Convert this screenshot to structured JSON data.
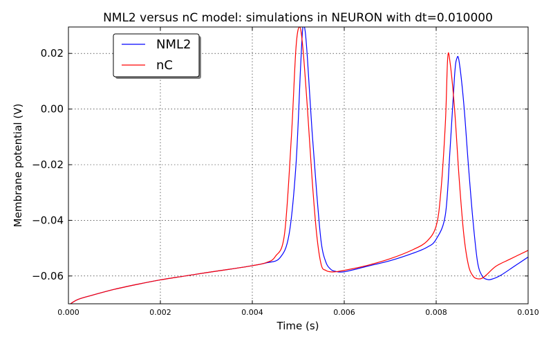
{
  "chart_data": {
    "type": "line",
    "title": "NML2 versus nC model: simulations in NEURON with dt=0.010000",
    "xlabel": "Time (s)",
    "ylabel": "Membrane potential (V)",
    "xlim": [
      0.0,
      0.01
    ],
    "ylim": [
      -0.07,
      0.0295
    ],
    "grid": true,
    "legend_position": "top-left",
    "x_ticks": [
      0.0,
      0.002,
      0.004,
      0.006,
      0.008,
      0.01
    ],
    "x_tick_labels": [
      "0.000",
      "0.002",
      "0.004",
      "0.006",
      "0.008",
      "0.010"
    ],
    "y_ticks": [
      -0.06,
      -0.04,
      -0.02,
      0.0,
      0.02
    ],
    "y_tick_labels": [
      "−0.06",
      "−0.04",
      "−0.02",
      "0.00",
      "0.02"
    ],
    "series": [
      {
        "name": "NML2",
        "color": "#0000ff",
        "x": [
          0.0,
          0.0002,
          0.0005,
          0.001,
          0.0015,
          0.002,
          0.0025,
          0.003,
          0.0035,
          0.004,
          0.0043,
          0.0046,
          0.0048,
          0.00495,
          0.00505,
          0.0051,
          0.00515,
          0.0052,
          0.0053,
          0.0054,
          0.0055,
          0.0056,
          0.0057,
          0.0058,
          0.006,
          0.0065,
          0.007,
          0.0075,
          0.0078,
          0.008,
          0.0082,
          0.0083,
          0.0084,
          0.00845,
          0.0085,
          0.0086,
          0.0087,
          0.0088,
          0.0089,
          0.009,
          0.0091,
          0.0092,
          0.0094,
          0.0097,
          0.01
        ],
        "y": [
          -0.0705,
          -0.0685,
          -0.067,
          -0.0648,
          -0.063,
          -0.0614,
          -0.0601,
          -0.0588,
          -0.0576,
          -0.0563,
          -0.0553,
          -0.0535,
          -0.045,
          -0.02,
          0.015,
          0.0295,
          0.028,
          0.018,
          -0.008,
          -0.03,
          -0.048,
          -0.055,
          -0.0575,
          -0.0583,
          -0.0585,
          -0.0565,
          -0.0545,
          -0.0518,
          -0.0497,
          -0.0468,
          -0.038,
          -0.015,
          0.012,
          0.0182,
          0.017,
          0.002,
          -0.02,
          -0.04,
          -0.055,
          -0.06,
          -0.0612,
          -0.0612,
          -0.0598,
          -0.0565,
          -0.0532
        ]
      },
      {
        "name": "nC",
        "color": "#ff0000",
        "x": [
          0.0,
          0.0002,
          0.0005,
          0.001,
          0.0015,
          0.002,
          0.0025,
          0.003,
          0.0035,
          0.004,
          0.0043,
          0.0045,
          0.0047,
          0.00485,
          0.00495,
          0.00503,
          0.0051,
          0.0052,
          0.0053,
          0.0054,
          0.0055,
          0.0056,
          0.0057,
          0.0058,
          0.006,
          0.0065,
          0.007,
          0.0075,
          0.0078,
          0.008,
          0.0081,
          0.0082,
          0.00825,
          0.0083,
          0.0084,
          0.0085,
          0.0086,
          0.0087,
          0.0088,
          0.0089,
          0.009,
          0.0091,
          0.0093,
          0.0096,
          0.01
        ],
        "y": [
          -0.0705,
          -0.0685,
          -0.067,
          -0.0648,
          -0.063,
          -0.0614,
          -0.0601,
          -0.0588,
          -0.0576,
          -0.0563,
          -0.0552,
          -0.053,
          -0.045,
          -0.01,
          0.022,
          0.0295,
          0.022,
          0.0,
          -0.025,
          -0.045,
          -0.056,
          -0.058,
          -0.0585,
          -0.0585,
          -0.058,
          -0.0562,
          -0.0538,
          -0.0505,
          -0.0475,
          -0.042,
          -0.03,
          -0.005,
          0.0182,
          0.017,
          0.0,
          -0.025,
          -0.045,
          -0.056,
          -0.06,
          -0.061,
          -0.0608,
          -0.0595,
          -0.0565,
          -0.054,
          -0.0508
        ]
      }
    ]
  }
}
